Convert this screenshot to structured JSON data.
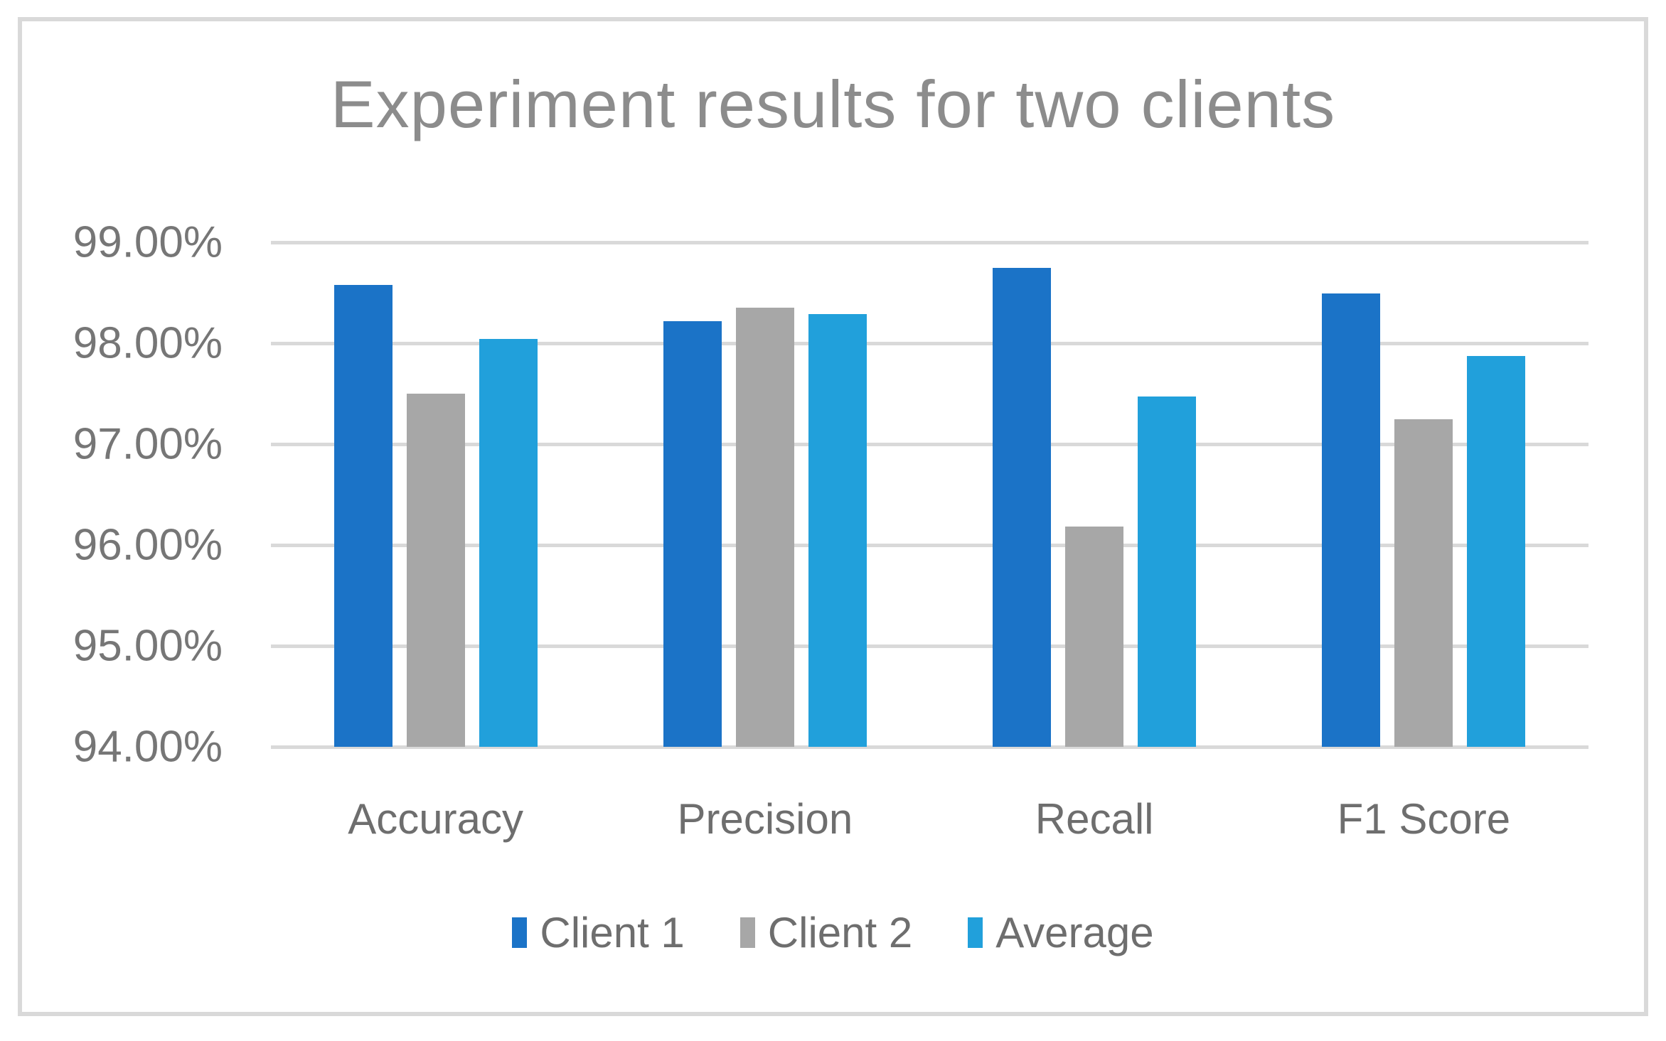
{
  "chart_data": {
    "type": "bar",
    "title": "Experiment results for two clients",
    "categories": [
      "Accuracy",
      "Precision",
      "Recall",
      "F1 Score"
    ],
    "series": [
      {
        "name": "Client 1",
        "color": "#1B73C7",
        "values": [
          98.58,
          98.22,
          98.75,
          98.49
        ]
      },
      {
        "name": "Client 2",
        "color": "#A7A7A7",
        "values": [
          97.5,
          98.35,
          96.18,
          97.25
        ]
      },
      {
        "name": "Average",
        "color": "#21A0DB",
        "values": [
          98.04,
          98.29,
          97.47,
          97.87
        ]
      }
    ],
    "ylim": [
      94,
      99
    ],
    "yticks": [
      "99.00%",
      "98.00%",
      "97.00%",
      "96.00%",
      "95.00%",
      "94.00%"
    ],
    "xlabel": "",
    "ylabel": "",
    "grid": "horizontal",
    "legend_position": "bottom"
  },
  "colors": {
    "frame_border": "#D9D9D9",
    "gridline": "#D9D9D9",
    "title_text": "#8C8C8C",
    "axis_tick_text": "#767676",
    "category_text": "#6E6E6E",
    "legend_text": "#6E6E6E",
    "client1": "#1B73C7",
    "client2": "#A7A7A7",
    "average": "#21A0DB"
  }
}
